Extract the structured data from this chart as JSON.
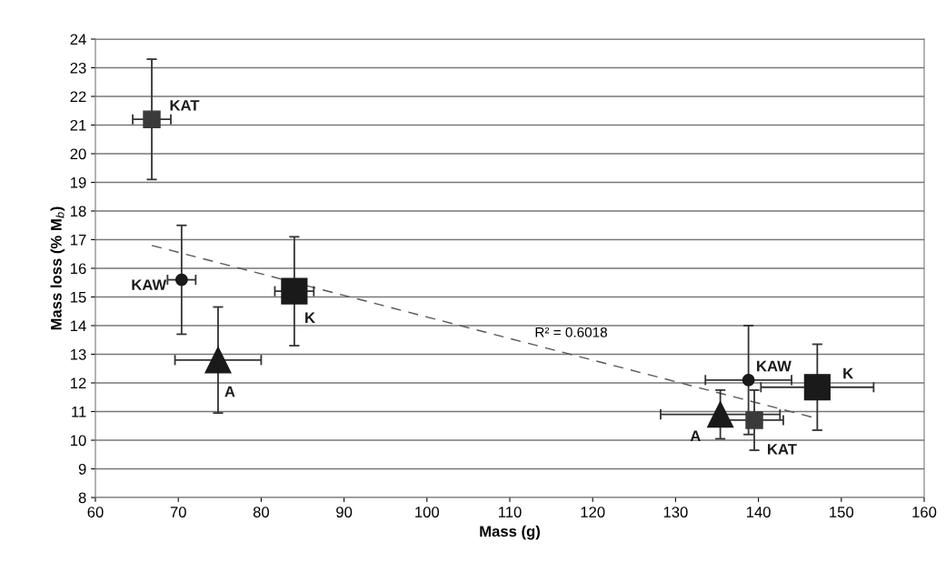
{
  "chart_data": {
    "type": "scatter",
    "xlabel": "Mass (g)",
    "ylabel": "Mass loss (% M$_{b}$)",
    "xlim": [
      60,
      160
    ],
    "xticks": [
      60,
      70,
      80,
      90,
      100,
      110,
      120,
      130,
      140,
      150,
      160
    ],
    "ylim": [
      8,
      24
    ],
    "yticks": [
      8,
      9,
      10,
      11,
      12,
      13,
      14,
      15,
      16,
      17,
      18,
      19,
      20,
      21,
      22,
      23,
      24
    ],
    "grid": "y",
    "legend": false,
    "series": [
      {
        "name": "KAT",
        "marker": "square",
        "color": "#3a3a3a",
        "x": [
          66.8,
          139.5
        ],
        "values": [
          21.2,
          10.7
        ],
        "errors": [
          2.1,
          1.05
        ],
        "xerrors": [
          2.3,
          3.5
        ]
      },
      {
        "name": "KAW",
        "marker": "circle",
        "color": "#1a1a1a",
        "x": [
          70.4,
          138.8
        ],
        "values": [
          15.6,
          12.1
        ],
        "errors": [
          1.9,
          1.9
        ],
        "xerrors": [
          1.7,
          5.2
        ]
      },
      {
        "name": "K",
        "marker": "square",
        "color": "#1a1a1a",
        "x": [
          84.0,
          147.1
        ],
        "values": [
          15.2,
          11.85
        ],
        "errors": [
          1.9,
          1.5
        ],
        "xerrors": [
          2.35,
          6.8
        ]
      },
      {
        "name": "A",
        "marker": "triangle",
        "color": "#1a1a1a",
        "x": [
          74.8,
          135.4
        ],
        "values": [
          12.8,
          10.9
        ],
        "errors": [
          1.85,
          0.85
        ],
        "xerrors": [
          5.2,
          7.2
        ]
      },
      {
        "type": "line",
        "line_style": "dashed",
        "color": "#555555",
        "x": [
          66.8,
          147.2
        ],
        "values": [
          16.8,
          10.75
        ]
      }
    ],
    "annotations": [
      "R² = 0.6018"
    ]
  }
}
